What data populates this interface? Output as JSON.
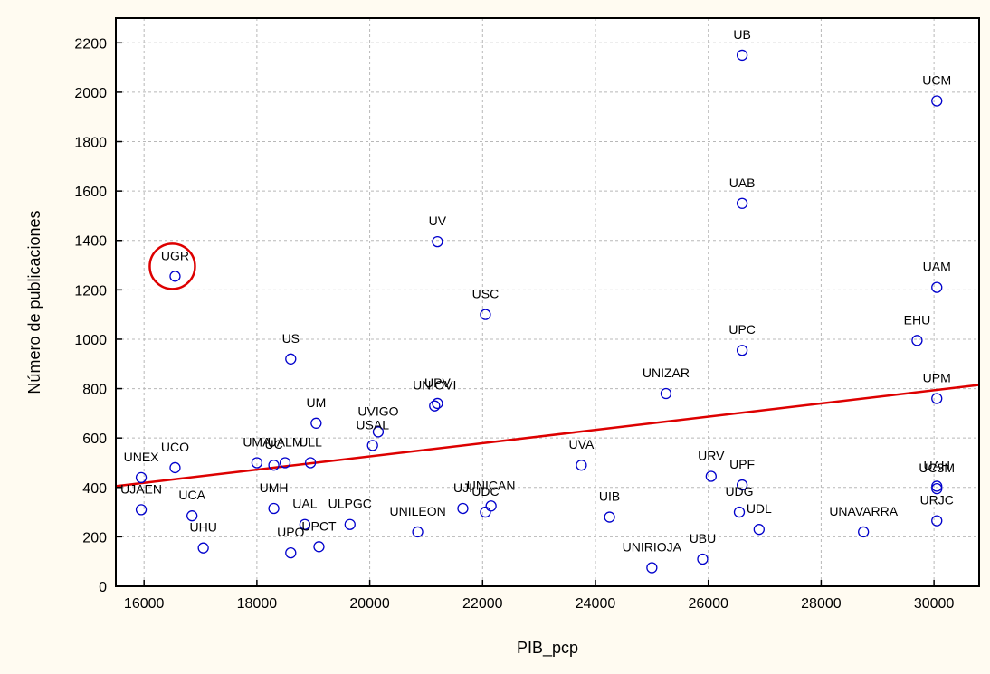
{
  "chart_data": {
    "type": "scatter",
    "xlabel": "PIB_pcp",
    "ylabel": "Número de publicaciones",
    "xlim": [
      15500,
      30800
    ],
    "ylim": [
      0,
      2300
    ],
    "xticks": [
      16000,
      18000,
      20000,
      22000,
      24000,
      26000,
      28000,
      30000
    ],
    "yticks": [
      0,
      200,
      400,
      600,
      800,
      1000,
      1200,
      1400,
      1600,
      1800,
      2000,
      2200
    ],
    "grid": true,
    "point_color": "#0000cc",
    "line_color": "#dd0000",
    "highlight_color": "#dd0000",
    "highlight_label": "UGR",
    "regression_line": {
      "x": [
        15500,
        30800
      ],
      "y": [
        405,
        815
      ]
    },
    "points": [
      {
        "label": "UB",
        "x": 26600,
        "y": 2150
      },
      {
        "label": "UCM",
        "x": 30050,
        "y": 1965
      },
      {
        "label": "UAB",
        "x": 26600,
        "y": 1550
      },
      {
        "label": "UV",
        "x": 21200,
        "y": 1395
      },
      {
        "label": "UGR",
        "x": 16550,
        "y": 1255
      },
      {
        "label": "UAM",
        "x": 30050,
        "y": 1210
      },
      {
        "label": "USC",
        "x": 22050,
        "y": 1100
      },
      {
        "label": "EHU",
        "x": 29700,
        "y": 995
      },
      {
        "label": "UPC",
        "x": 26600,
        "y": 955
      },
      {
        "label": "US",
        "x": 18600,
        "y": 920
      },
      {
        "label": "UNIZAR",
        "x": 25250,
        "y": 780
      },
      {
        "label": "UPM",
        "x": 30050,
        "y": 760
      },
      {
        "label": "UPV",
        "x": 21200,
        "y": 740
      },
      {
        "label": "UNIOVI",
        "x": 21150,
        "y": 730
      },
      {
        "label": "UM",
        "x": 19050,
        "y": 660
      },
      {
        "label": "UVIGO",
        "x": 20150,
        "y": 625
      },
      {
        "label": "USAL",
        "x": 20050,
        "y": 570
      },
      {
        "label": "UMA",
        "x": 18000,
        "y": 500
      },
      {
        "label": "UC",
        "x": 18300,
        "y": 490
      },
      {
        "label": "UALM",
        "x": 18500,
        "y": 500
      },
      {
        "label": "ULL",
        "x": 18950,
        "y": 500
      },
      {
        "label": "UNEX",
        "x": 15950,
        "y": 440
      },
      {
        "label": "UCO",
        "x": 16550,
        "y": 480
      },
      {
        "label": "UVA",
        "x": 23750,
        "y": 490
      },
      {
        "label": "URV",
        "x": 26050,
        "y": 445
      },
      {
        "label": "UPF",
        "x": 26600,
        "y": 410
      },
      {
        "label": "UAH",
        "x": 30050,
        "y": 405
      },
      {
        "label": "UC3M",
        "x": 30050,
        "y": 395
      },
      {
        "label": "UJAEN",
        "x": 15950,
        "y": 310
      },
      {
        "label": "UCA",
        "x": 16850,
        "y": 285
      },
      {
        "label": "UMH",
        "x": 18300,
        "y": 315
      },
      {
        "label": "UAL",
        "x": 18850,
        "y": 250
      },
      {
        "label": "ULPGC",
        "x": 19650,
        "y": 250
      },
      {
        "label": "UJI",
        "x": 21650,
        "y": 315
      },
      {
        "label": "UDC",
        "x": 22050,
        "y": 300
      },
      {
        "label": "UNICAN",
        "x": 22150,
        "y": 325
      },
      {
        "label": "UIB",
        "x": 24250,
        "y": 280
      },
      {
        "label": "UDG",
        "x": 26550,
        "y": 300
      },
      {
        "label": "URJC",
        "x": 30050,
        "y": 265
      },
      {
        "label": "UHU",
        "x": 17050,
        "y": 155
      },
      {
        "label": "UPO",
        "x": 18600,
        "y": 135
      },
      {
        "label": "UPCT",
        "x": 19100,
        "y": 160
      },
      {
        "label": "UNILEON",
        "x": 20850,
        "y": 220
      },
      {
        "label": "UDL",
        "x": 26900,
        "y": 230
      },
      {
        "label": "UNAVARRA",
        "x": 28750,
        "y": 220
      },
      {
        "label": "UBU",
        "x": 25900,
        "y": 110
      },
      {
        "label": "UNIRIOJA",
        "x": 25000,
        "y": 75
      }
    ]
  }
}
